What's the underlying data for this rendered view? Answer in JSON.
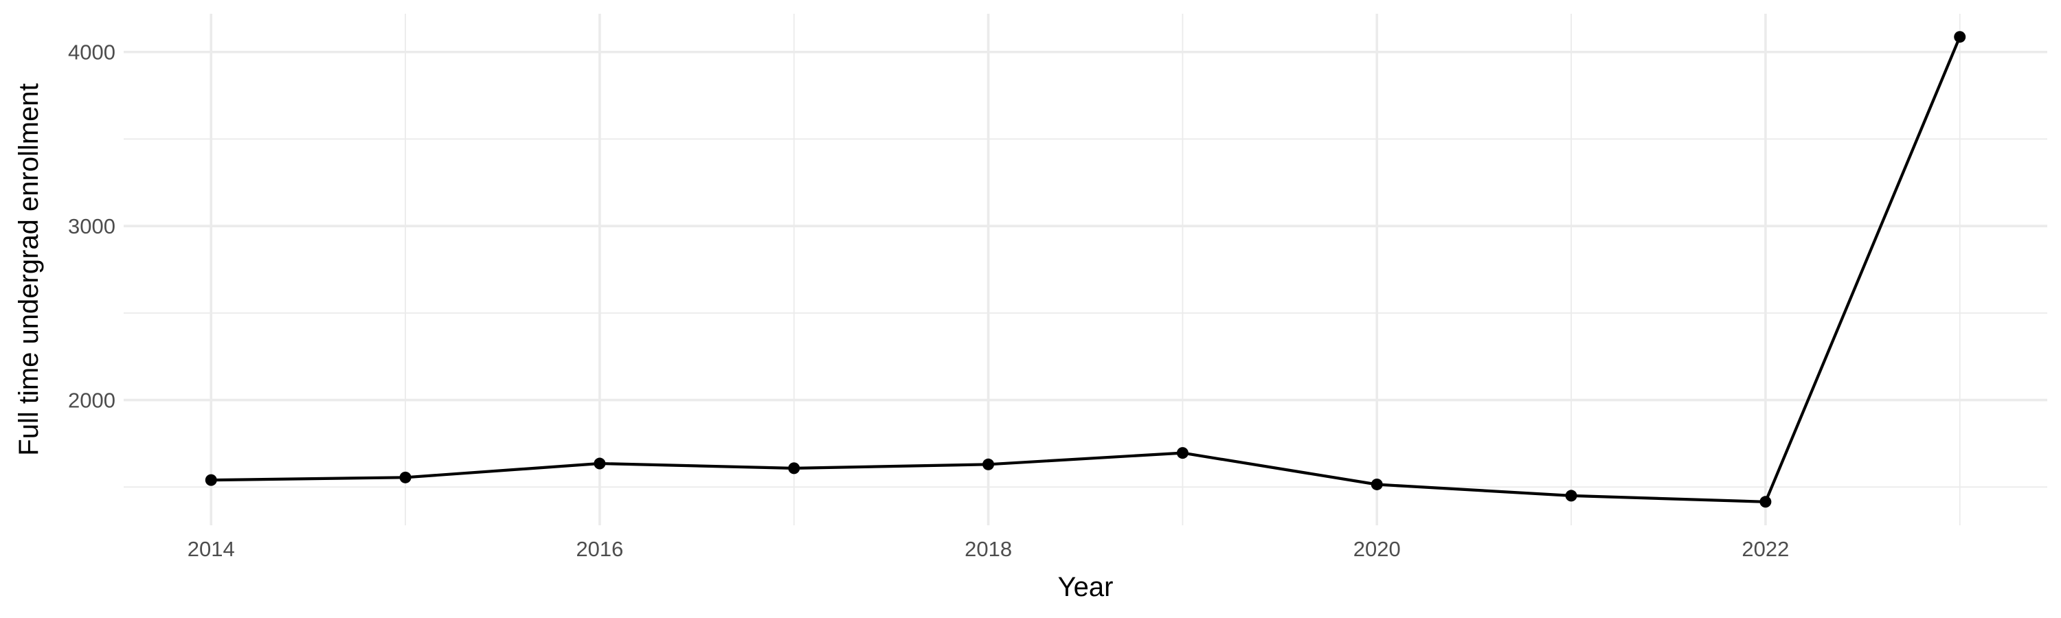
{
  "chart_data": {
    "type": "line",
    "title": "",
    "xlabel": "Year",
    "ylabel": "Full time undergrad enrollment",
    "x": [
      2014,
      2015,
      2016,
      2017,
      2018,
      2019,
      2020,
      2021,
      2022,
      2023
    ],
    "series": [
      {
        "values": [
          1540,
          1555,
          1635,
          1608,
          1630,
          1696,
          1515,
          1450,
          1415,
          4087
        ]
      }
    ],
    "xlim": [
      2013.55,
      2023.45
    ],
    "ylim": [
      1280,
      4220
    ],
    "x_ticks": [
      2014,
      2016,
      2018,
      2020,
      2022
    ],
    "x_tick_labels": [
      "2014",
      "2016",
      "2018",
      "2020",
      "2022"
    ],
    "x_minor_ticks": [
      2015,
      2017,
      2019,
      2021,
      2023
    ],
    "y_ticks": [
      2000,
      3000,
      4000
    ],
    "y_tick_labels": [
      "2000",
      "3000",
      "4000"
    ],
    "y_minor_ticks": [
      1500,
      2500,
      3500
    ],
    "grid": true,
    "legend": "none",
    "colors": {
      "line": "#000000",
      "grid": "#ebebeb",
      "tick_text": "#4d4d4d",
      "background": "#ffffff"
    }
  }
}
